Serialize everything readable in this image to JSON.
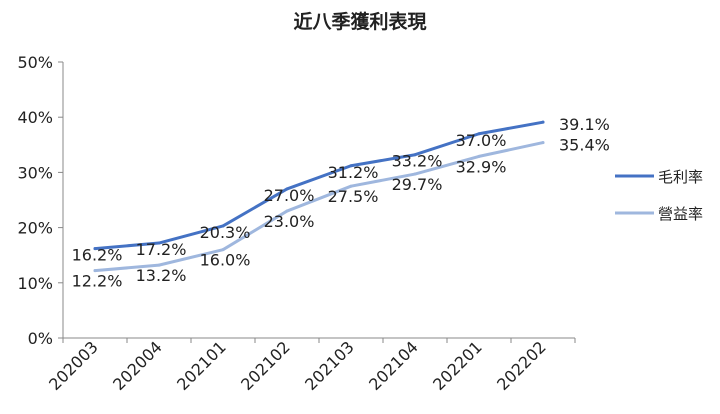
{
  "chart_data": {
    "type": "line",
    "title": "近八季獲利表現",
    "categories": [
      "202003",
      "202004",
      "202101",
      "202102",
      "202103",
      "202104",
      "202201",
      "202202"
    ],
    "ylim": [
      0,
      50
    ],
    "yticks": [
      0,
      10,
      20,
      30,
      40,
      50
    ],
    "ytick_labels": [
      "0%",
      "10%",
      "20%",
      "30%",
      "40%",
      "50%"
    ],
    "grid": false,
    "legend": "right",
    "series": [
      {
        "name": "毛利率",
        "color": "#4472c4",
        "values": [
          16.2,
          17.2,
          20.3,
          27.0,
          31.2,
          33.2,
          37.0,
          39.1
        ],
        "labels": [
          "16.2%",
          "17.2%",
          "20.3%",
          "27.0%",
          "31.2%",
          "33.2%",
          "37.0%",
          "39.1%"
        ]
      },
      {
        "name": "營益率",
        "color": "#9fb7de",
        "values": [
          12.2,
          13.2,
          16.0,
          23.0,
          27.5,
          29.7,
          32.9,
          35.4
        ],
        "labels": [
          "12.2%",
          "13.2%",
          "16.0%",
          "23.0%",
          "27.5%",
          "29.7%",
          "32.9%",
          "35.4%"
        ]
      }
    ]
  }
}
